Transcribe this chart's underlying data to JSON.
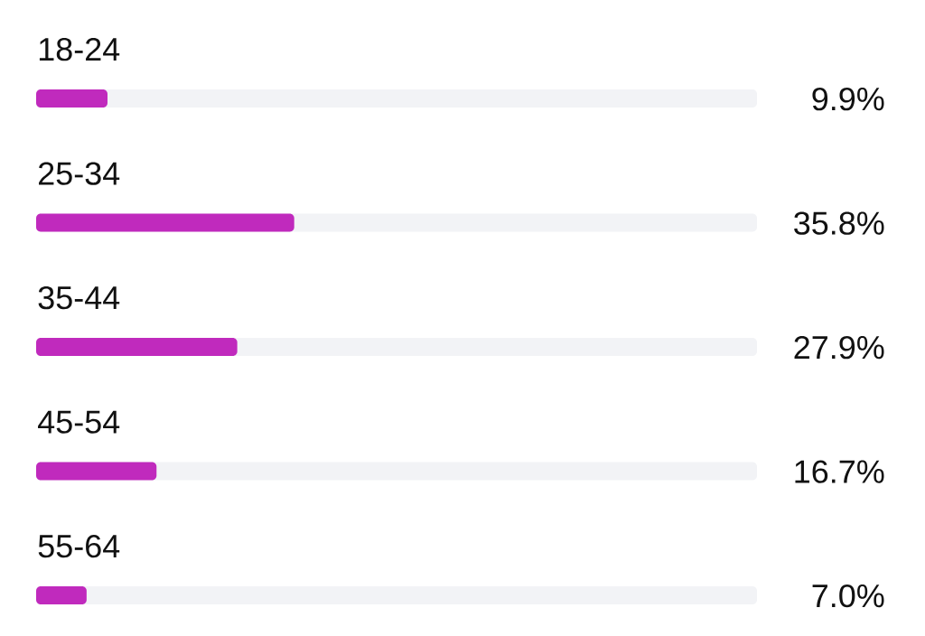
{
  "chart_data": {
    "type": "bar",
    "orientation": "horizontal",
    "categories": [
      "18-24",
      "25-34",
      "35-44",
      "45-54",
      "55-64"
    ],
    "values": [
      9.9,
      35.8,
      27.9,
      16.7,
      7.0
    ],
    "value_labels": [
      "9.9%",
      "35.8%",
      "27.9%",
      "16.7%",
      "7.0%"
    ],
    "color": "#c02abd",
    "xlim": [
      0,
      100
    ]
  }
}
